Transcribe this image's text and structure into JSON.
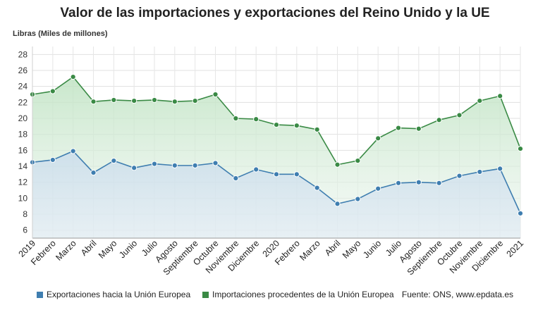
{
  "title": "Valor de las importaciones y exportaciones del Reino Unido y la UE",
  "footer": {
    "legend_export": "Exportaciones hacia la Unión Europea",
    "legend_import": "Importaciones procedentes de la Unión Europea",
    "source": "Fuente: ONS, www.epdata.es"
  },
  "chart_data": {
    "type": "line",
    "title": "Valor de las importaciones y exportaciones del Reino Unido y la UE",
    "ylabel": "Libras (Miles de millones)",
    "xlabel": "",
    "ylim": [
      5,
      29
    ],
    "yticks": [
      6,
      8,
      10,
      12,
      14,
      16,
      18,
      20,
      22,
      24,
      26,
      28
    ],
    "grid": true,
    "legend": "bottom",
    "categories": [
      "2019",
      "Febrero",
      "Marzo",
      "Abril",
      "Mayo",
      "Junio",
      "Julio",
      "Agosto",
      "Septiembre",
      "Octubre",
      "Noviembre",
      "Diciembre",
      "2020",
      "Febrero",
      "Marzo",
      "Abril",
      "Mayo",
      "Junio",
      "Julio",
      "Agosto",
      "Septiembre",
      "Octubre",
      "Noviembre",
      "Diciembre",
      "2021"
    ],
    "series": [
      {
        "name": "Importaciones procedentes de la Unión Europea",
        "color": "#3a8a45",
        "values": [
          23.0,
          23.4,
          25.2,
          22.1,
          22.3,
          22.2,
          22.3,
          22.1,
          22.2,
          23.0,
          20.0,
          19.9,
          19.2,
          19.1,
          18.6,
          14.2,
          14.7,
          17.5,
          18.8,
          18.7,
          19.8,
          20.4,
          22.2,
          22.8,
          16.2
        ]
      },
      {
        "name": "Exportaciones hacia la Unión Europea",
        "color": "#3f7eb0",
        "values": [
          14.5,
          14.8,
          15.9,
          13.2,
          14.7,
          13.8,
          14.3,
          14.1,
          14.1,
          14.4,
          12.5,
          13.6,
          13.0,
          13.0,
          11.3,
          9.3,
          9.9,
          11.2,
          11.9,
          12.0,
          11.9,
          12.8,
          13.3,
          13.7,
          8.1
        ]
      }
    ]
  }
}
